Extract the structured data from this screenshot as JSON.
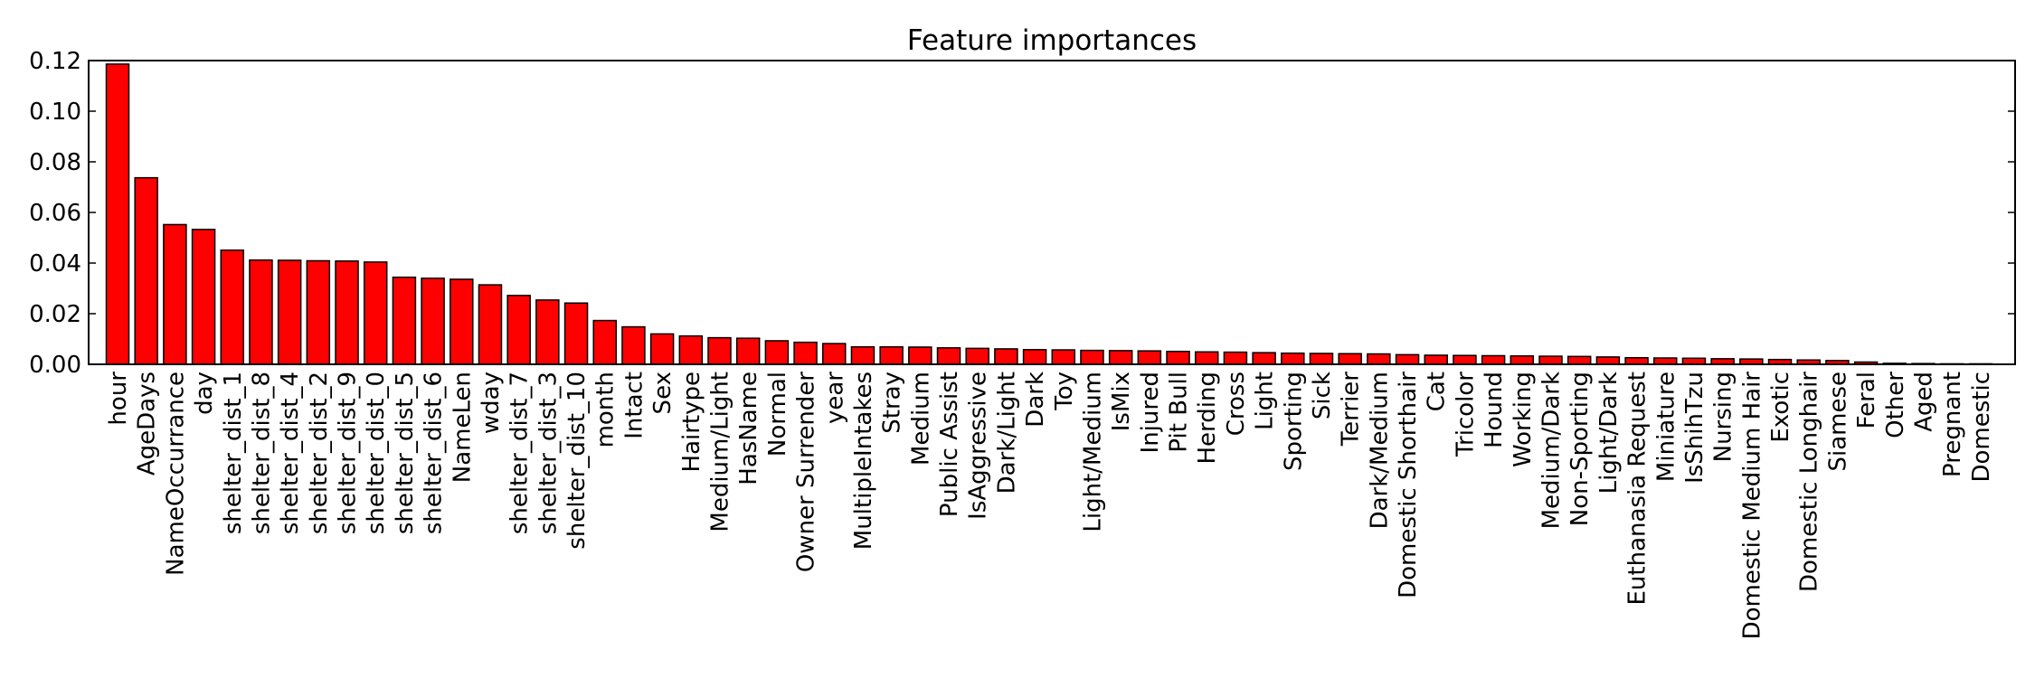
{
  "chart_data": {
    "type": "bar",
    "title": "Feature importances",
    "xlabel": "",
    "ylabel": "",
    "ylim": [
      0,
      0.12
    ],
    "y_ticks": [
      "0.00",
      "0.02",
      "0.04",
      "0.06",
      "0.08",
      "0.10",
      "0.12"
    ],
    "grid": false,
    "bar_color": "#ff0000",
    "edge_color": "#000000",
    "categories": [
      "hour",
      "AgeDays",
      "NameOccurrance",
      "day",
      "shelter_dist_1",
      "shelter_dist_8",
      "shelter_dist_4",
      "shelter_dist_2",
      "shelter_dist_9",
      "shelter_dist_0",
      "shelter_dist_5",
      "shelter_dist_6",
      "NameLen",
      "wday",
      "shelter_dist_7",
      "shelter_dist_3",
      "shelter_dist_10",
      "month",
      "Intact",
      "Sex",
      "Hairtype",
      "Medium/Light",
      "HasName",
      "Normal",
      "Owner Surrender",
      "year",
      "MultipleIntakes",
      "Stray",
      "Medium",
      "Public Assist",
      "IsAggressive",
      "Dark/Light",
      "Dark",
      "Toy",
      "Light/Medium",
      "IsMix",
      "Injured",
      "Pit Bull",
      "Herding",
      "Cross",
      "Light",
      "Sporting",
      "Sick",
      "Terrier",
      "Dark/Medium",
      "Domestic Shorthair",
      "Cat",
      "Tricolor",
      "Hound",
      "Working",
      "Medium/Dark",
      "Non-Sporting",
      "Light/Dark",
      "Euthanasia Request",
      "Miniature",
      "IsShihTzu",
      "Nursing",
      "Domestic Medium Hair",
      "Exotic",
      "Domestic Longhair",
      "Siamese",
      "Feral",
      "Other",
      "Aged",
      "Pregnant",
      "Domestic"
    ],
    "values": [
      0.1186,
      0.0737,
      0.0552,
      0.0533,
      0.0451,
      0.0412,
      0.0411,
      0.0409,
      0.0408,
      0.0404,
      0.0344,
      0.034,
      0.0336,
      0.0314,
      0.0272,
      0.0254,
      0.0242,
      0.0173,
      0.0148,
      0.012,
      0.0112,
      0.0105,
      0.0103,
      0.0093,
      0.0087,
      0.0082,
      0.0069,
      0.0069,
      0.0068,
      0.0065,
      0.0063,
      0.0061,
      0.0058,
      0.0057,
      0.0055,
      0.0054,
      0.0053,
      0.0051,
      0.0049,
      0.0048,
      0.0046,
      0.0044,
      0.0043,
      0.0042,
      0.0041,
      0.0038,
      0.0036,
      0.0035,
      0.0034,
      0.0033,
      0.0032,
      0.0031,
      0.0029,
      0.0026,
      0.0025,
      0.0024,
      0.0022,
      0.0021,
      0.0019,
      0.0017,
      0.0015,
      0.0009,
      0.0004,
      0.0003,
      0.0002,
      0.0002
    ]
  }
}
